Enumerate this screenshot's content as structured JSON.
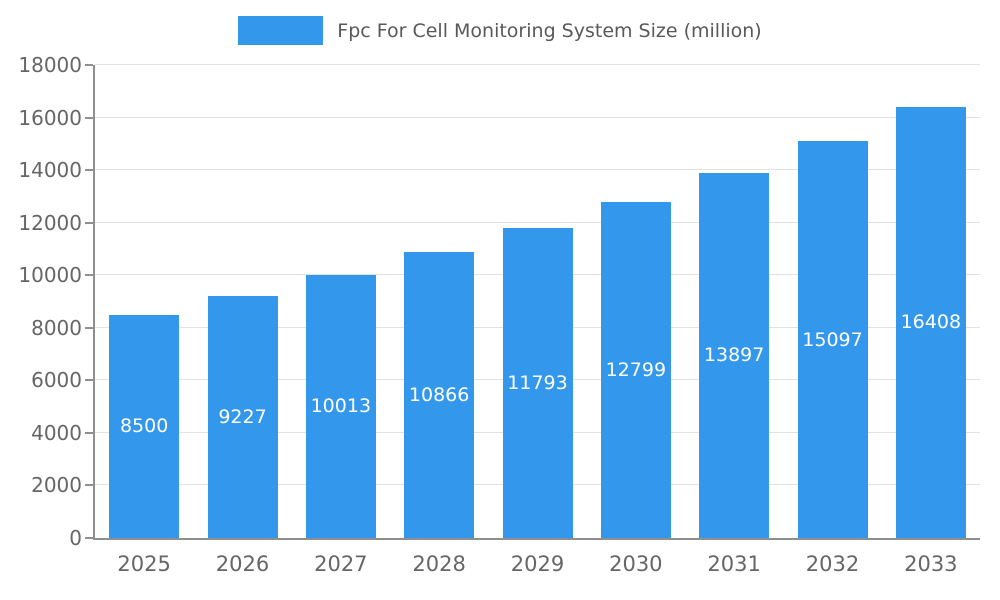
{
  "legend": {
    "label": "Fpc For Cell Monitoring System Size (million)"
  },
  "colors": {
    "bar": "#3398EC",
    "grid": "#e2e2e2",
    "axis": "#8f8f8f",
    "tick_text": "#666666",
    "legend_text": "#595959",
    "value_label_text": "#ffffff"
  },
  "chart_data": {
    "type": "bar",
    "title": "Fpc For Cell Monitoring System Size (million)",
    "categories": [
      "2025",
      "2026",
      "2027",
      "2028",
      "2029",
      "2030",
      "2031",
      "2032",
      "2033"
    ],
    "values": [
      8500,
      9227,
      10013,
      10866,
      11793,
      12799,
      13897,
      15097,
      16408
    ],
    "xlabel": "",
    "ylabel": "",
    "ylim": [
      0,
      18000
    ],
    "ytick_step": 2000,
    "ytick_labels": [
      "0",
      "2000",
      "4000",
      "6000",
      "8000",
      "10000",
      "12000",
      "14000",
      "16000",
      "18000"
    ],
    "grid": true,
    "legend_position": "top-center",
    "value_labels": "white, centered inside each bar at mid-height"
  }
}
